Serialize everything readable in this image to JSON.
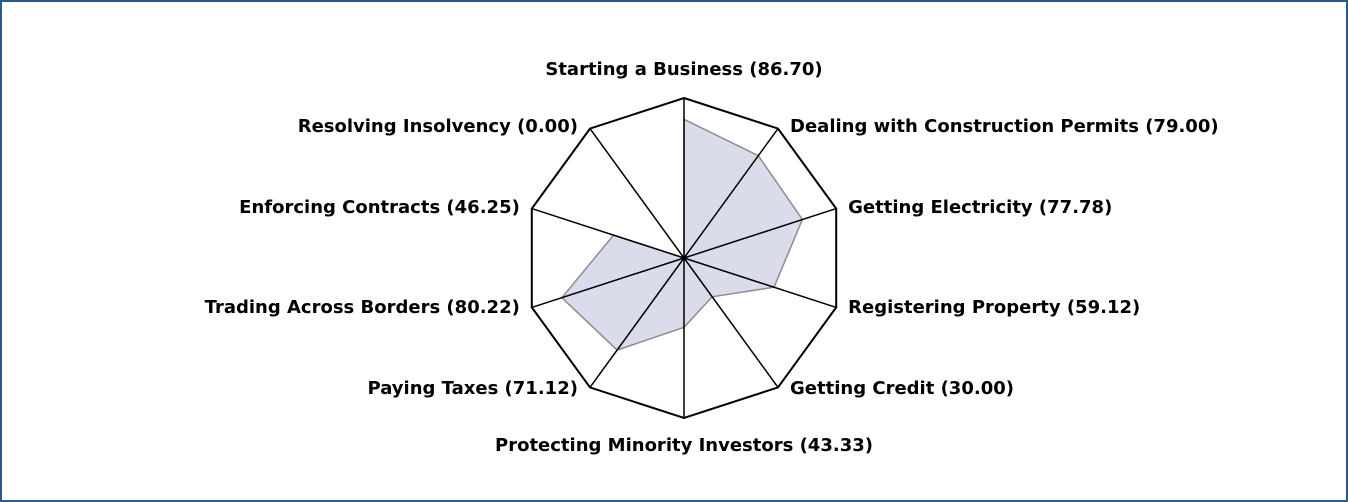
{
  "chart_data": {
    "type": "radar",
    "categories": [
      "Starting a Business (86.70)",
      "Dealing with Construction Permits (79.00)",
      "Getting Electricity (77.78)",
      "Registering Property (59.12)",
      "Getting Credit (30.00)",
      "Protecting Minority Investors (43.33)",
      "Paying Taxes (71.12)",
      "Trading Across Borders (80.22)",
      "Enforcing Contracts (46.25)",
      "Resolving Insolvency (0.00)"
    ],
    "values": [
      86.7,
      79.0,
      77.78,
      59.12,
      30.0,
      43.33,
      71.12,
      80.22,
      46.25,
      0.0
    ],
    "color": "#dadcec",
    "line_color": "#8c8c8c",
    "rlim": [
      0,
      100
    ]
  }
}
